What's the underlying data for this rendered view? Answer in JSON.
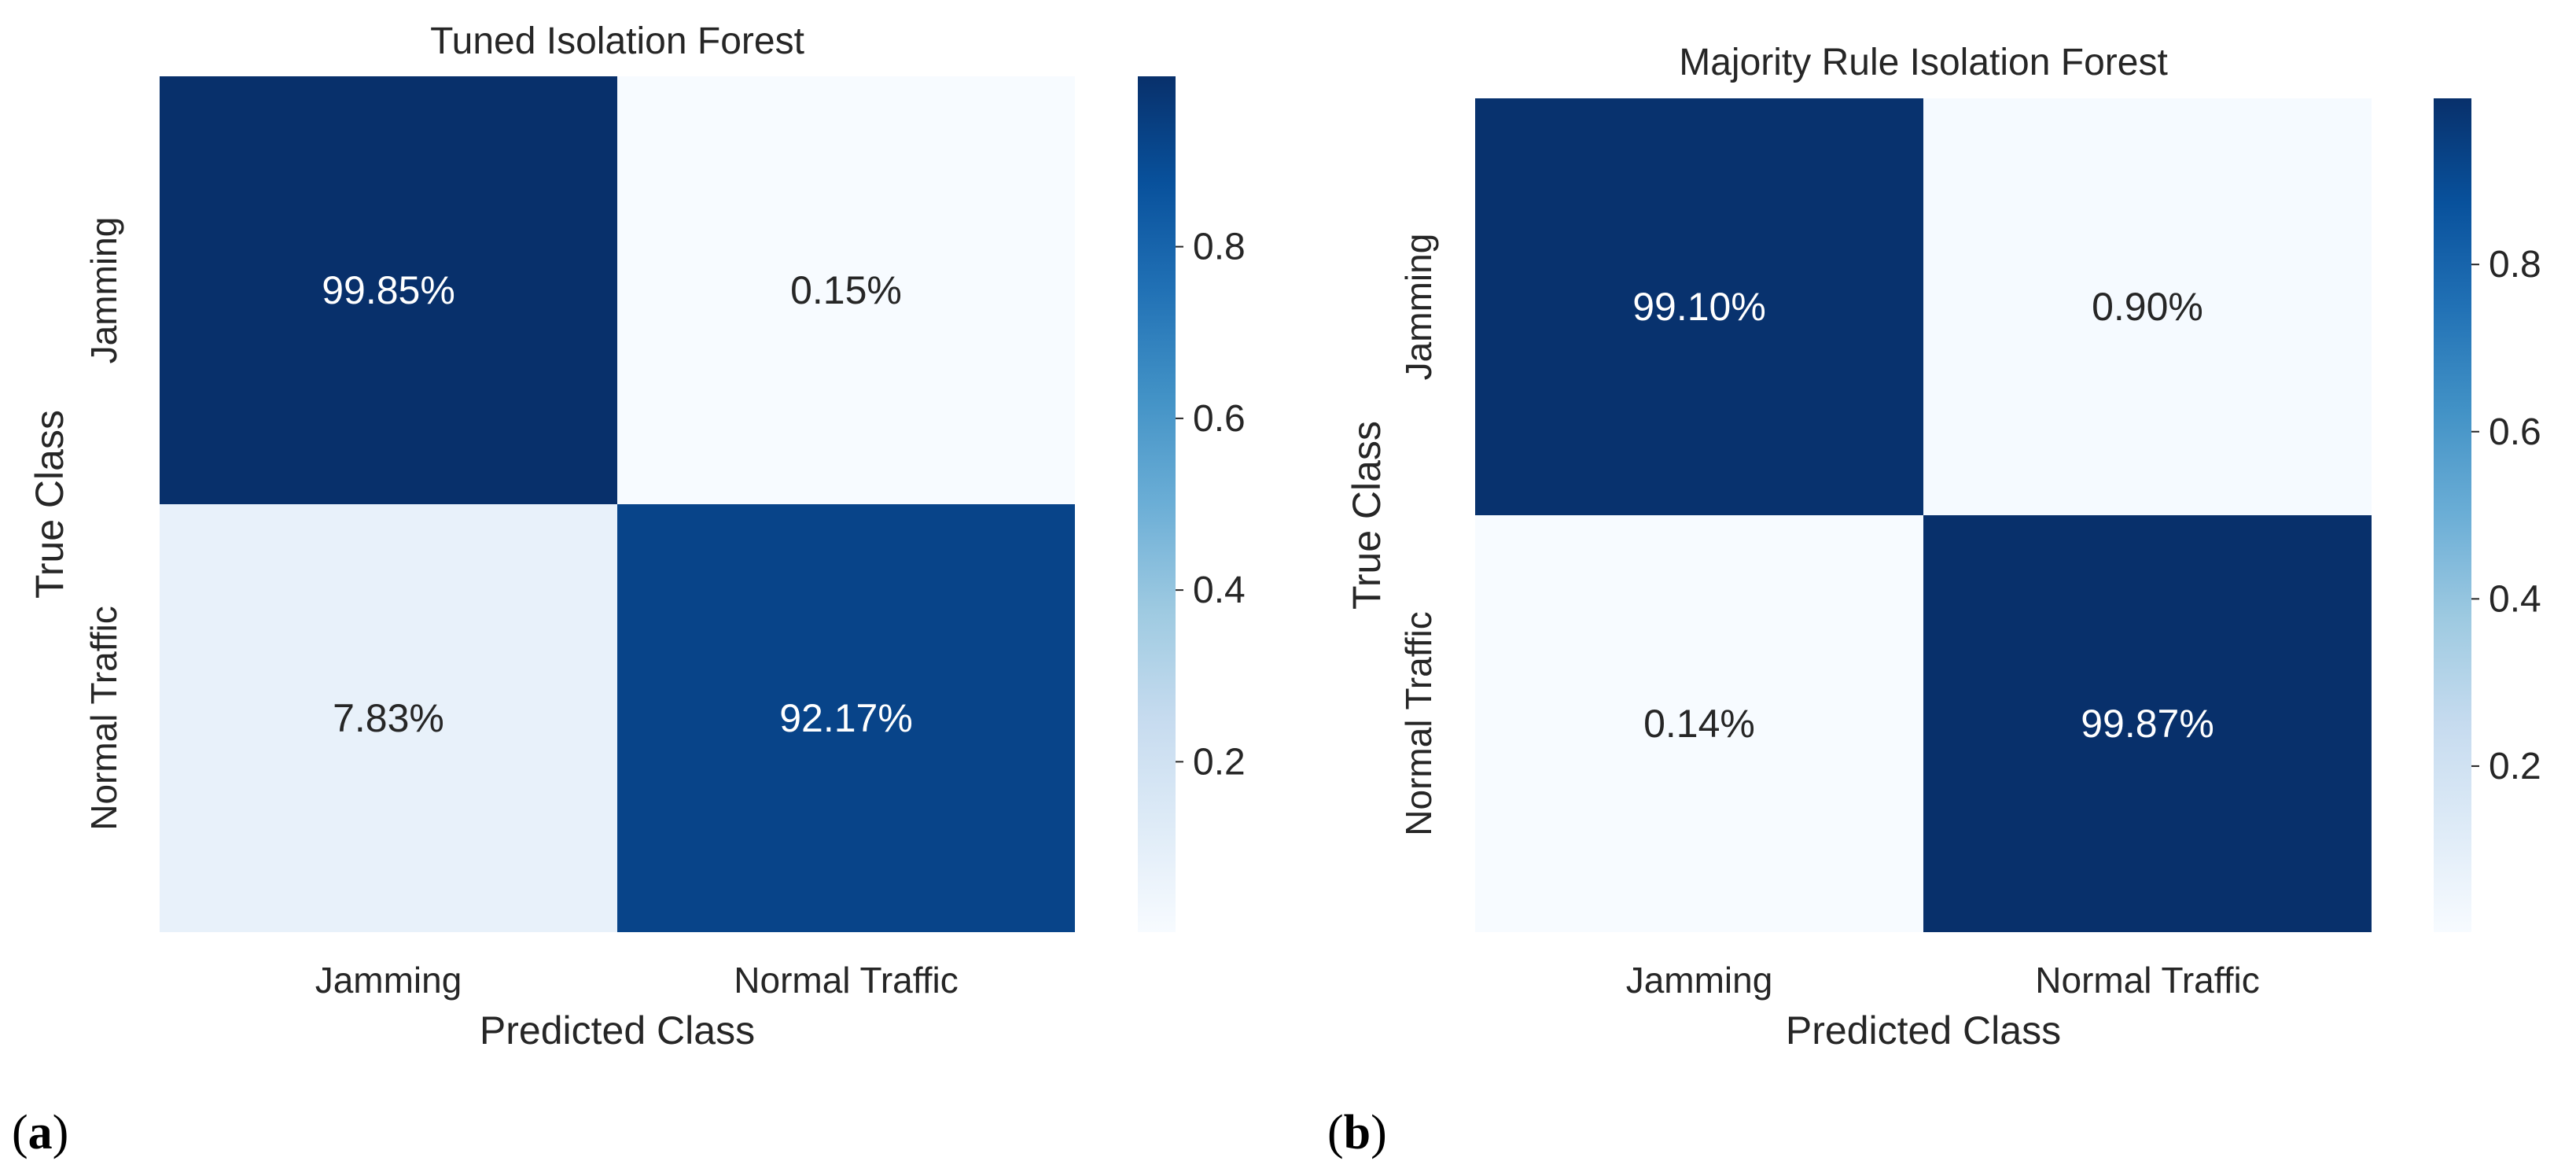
{
  "chart_data": [
    {
      "type": "heatmap",
      "panel_label": "(a)",
      "title": "Tuned Isolation Forest",
      "xlabel": "Predicted Class",
      "ylabel": "True Class",
      "x_categories": [
        "Jamming",
        "Normal Traffic"
      ],
      "y_categories": [
        "Jamming",
        "Normal Traffic"
      ],
      "values": [
        [
          0.9985,
          0.0015
        ],
        [
          0.0783,
          0.9217
        ]
      ],
      "cell_labels": [
        [
          "99.85%",
          "0.15%"
        ],
        [
          "7.83%",
          "92.17%"
        ]
      ],
      "colormap": "Blues",
      "vmin": 0.0015,
      "vmax": 0.9985,
      "colorbar_ticks": [
        0.2,
        0.4,
        0.6,
        0.8
      ],
      "colorbar_tick_labels": [
        "0.2",
        "0.4",
        "0.6",
        "0.8"
      ]
    },
    {
      "type": "heatmap",
      "panel_label": "(b)",
      "title": "Majority Rule Isolation Forest",
      "xlabel": "Predicted Class",
      "ylabel": "True Class",
      "x_categories": [
        "Jamming",
        "Normal Traffic"
      ],
      "y_categories": [
        "Jamming",
        "Normal Traffic"
      ],
      "values": [
        [
          0.991,
          0.009
        ],
        [
          0.0014,
          0.9987
        ]
      ],
      "cell_labels": [
        [
          "99.10%",
          "0.90%"
        ],
        [
          "0.14%",
          "99.87%"
        ]
      ],
      "colormap": "Blues",
      "vmin": 0.0014,
      "vmax": 0.9987,
      "colorbar_ticks": [
        0.2,
        0.4,
        0.6,
        0.8
      ],
      "colorbar_tick_labels": [
        "0.2",
        "0.4",
        "0.6",
        "0.8"
      ]
    }
  ]
}
